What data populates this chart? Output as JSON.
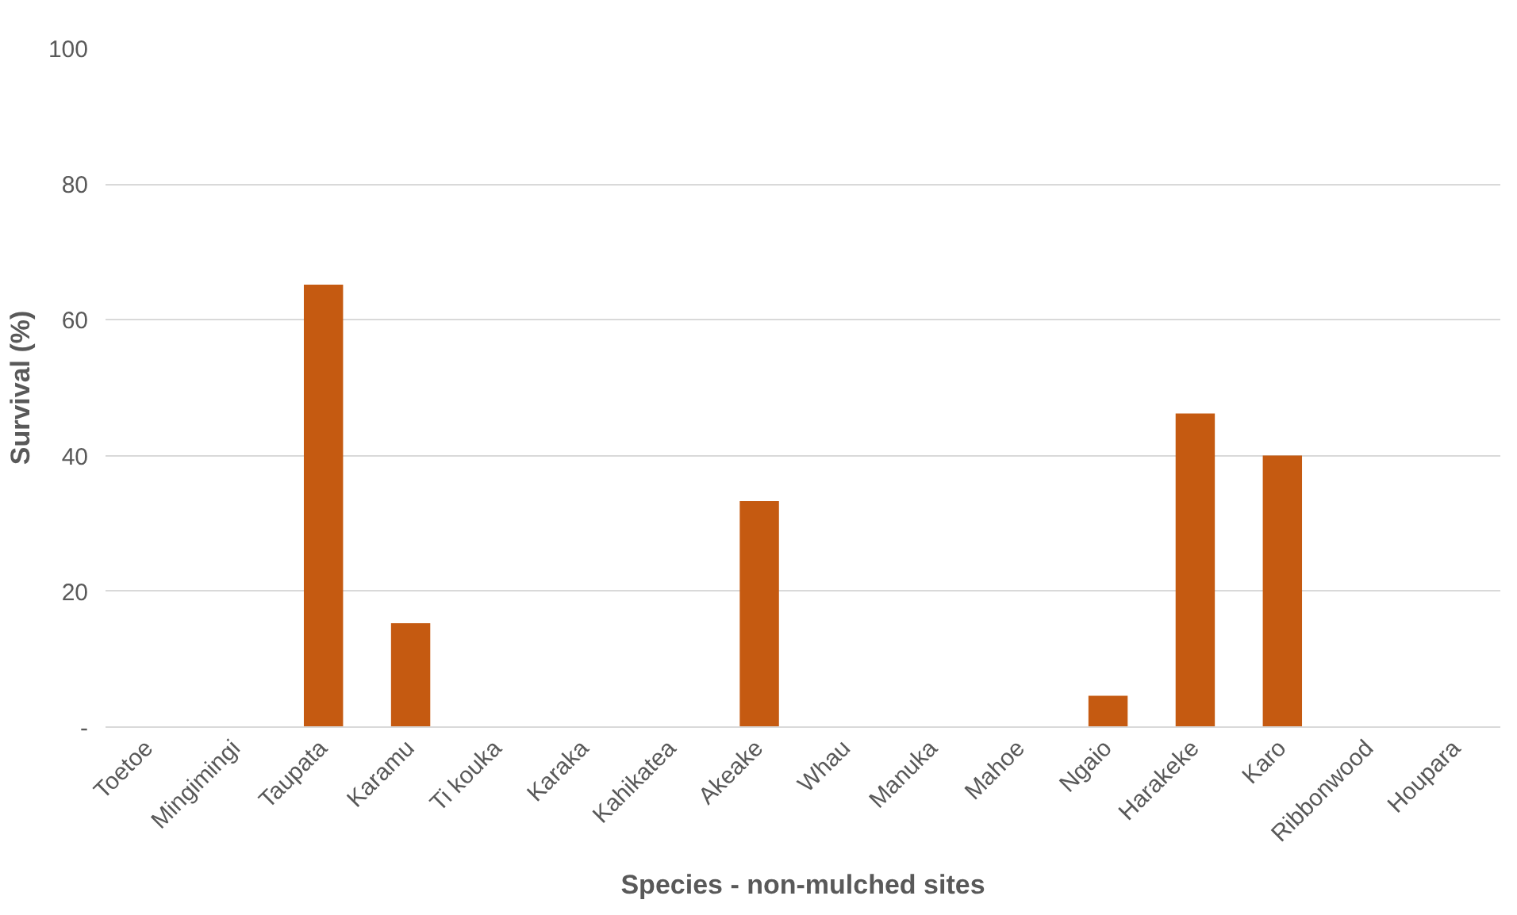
{
  "chart_data": {
    "type": "bar",
    "xlabel": "Species - non-mulched sites",
    "ylabel": "Survival (%)",
    "categories": [
      "Toetoe",
      "Mingimingi",
      "Taupata",
      "Karamu",
      "Ti kouka",
      "Karaka",
      "Kahikatea",
      "Akeake",
      "Whau",
      "Manuka",
      "Mahoe",
      "Ngaio",
      "Harakeke",
      "Karo",
      "Ribbonwood",
      "Houpara"
    ],
    "values": [
      0,
      0,
      65.2,
      15.3,
      0,
      0,
      0,
      33.3,
      0,
      0,
      0,
      4.6,
      46.2,
      40,
      0,
      0
    ],
    "color": "#c55a11",
    "ylim": [
      0,
      100
    ],
    "yticks": [
      {
        "value": 0,
        "label": "-"
      },
      20,
      40,
      60,
      80,
      100
    ],
    "grid": "y"
  }
}
